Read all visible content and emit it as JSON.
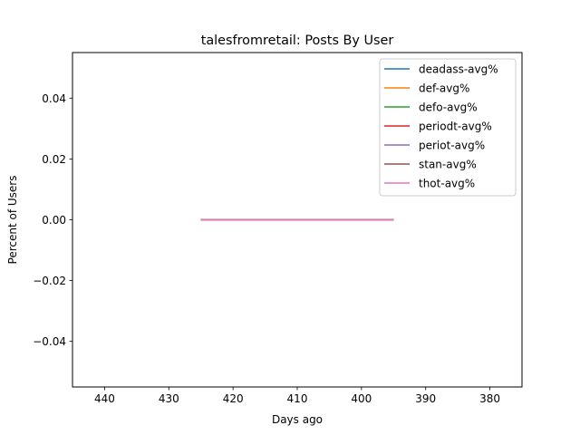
{
  "chart_data": {
    "type": "line",
    "title": "talesfromretail: Posts By User",
    "xlabel": "Days ago",
    "ylabel": "Percent of Users",
    "xlim": [
      445,
      375
    ],
    "ylim": [
      -0.055,
      0.055
    ],
    "x_inverted": true,
    "xticks": [
      440,
      430,
      420,
      410,
      400,
      390,
      380
    ],
    "xtick_labels": [
      "440",
      "430",
      "420",
      "410",
      "400",
      "390",
      "380"
    ],
    "yticks": [
      0.04,
      0.02,
      0.0,
      -0.02,
      -0.04
    ],
    "ytick_labels": [
      "0.04",
      "0.02",
      "0.00",
      "−0.02",
      "−0.04"
    ],
    "grid": false,
    "legend_position": "top-right",
    "x": [
      425,
      395
    ],
    "series": [
      {
        "name": "deadass-avg%",
        "color": "#1f77b4",
        "values": [
          0,
          0
        ]
      },
      {
        "name": "def-avg%",
        "color": "#ff7f0e",
        "values": [
          0,
          0
        ]
      },
      {
        "name": "defo-avg%",
        "color": "#2ca02c",
        "values": [
          0,
          0
        ]
      },
      {
        "name": "periodt-avg%",
        "color": "#d62728",
        "values": [
          0,
          0
        ]
      },
      {
        "name": "periot-avg%",
        "color": "#9467bd",
        "values": [
          0,
          0
        ]
      },
      {
        "name": "stan-avg%",
        "color": "#8c564b",
        "values": [
          0,
          0
        ]
      },
      {
        "name": "thot-avg%",
        "color": "#e377c2",
        "values": [
          0,
          0
        ]
      }
    ]
  }
}
